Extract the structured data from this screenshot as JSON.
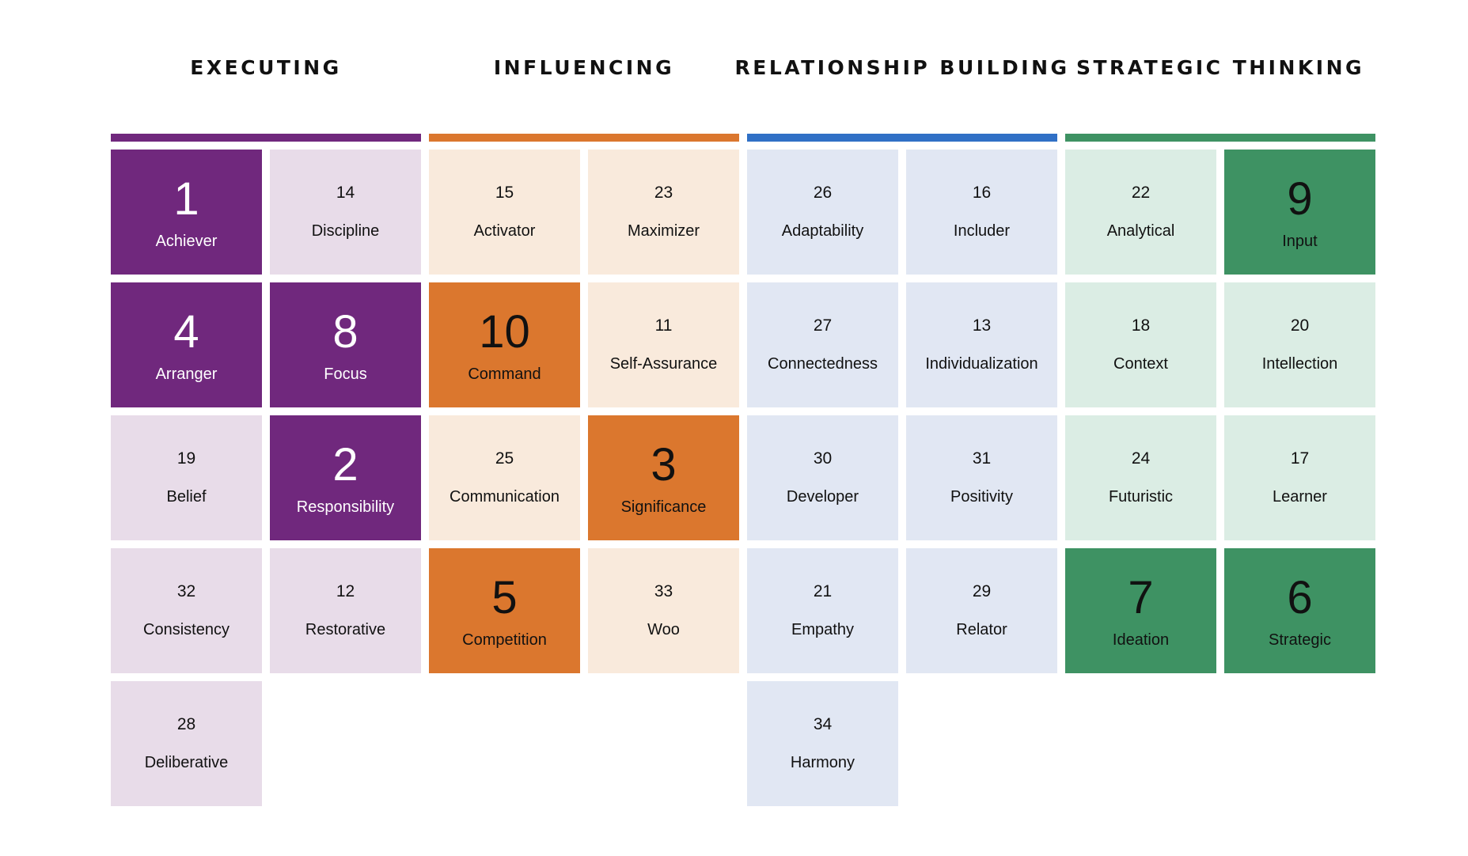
{
  "colors": {
    "executing": {
      "bar": "#70287d",
      "dark": "#70287d",
      "light": "#e8dce9",
      "dark_text": "#ffffff"
    },
    "influencing": {
      "bar": "#db772e",
      "dark": "#db772e",
      "light": "#f9eadc",
      "dark_text": "#111111"
    },
    "relationship": {
      "bar": "#3070c6",
      "dark": "#3070c6",
      "light": "#e1e7f3",
      "dark_text": "#ffffff"
    },
    "strategic": {
      "bar": "#3e9263",
      "dark": "#3e9263",
      "light": "#dbede4",
      "dark_text": "#111111"
    }
  },
  "domains": [
    {
      "key": "executing",
      "title": "EXECUTING",
      "themes": [
        {
          "rank": "1",
          "name": "Achiever",
          "top": true
        },
        {
          "rank": "14",
          "name": "Discipline",
          "top": false
        },
        {
          "rank": "4",
          "name": "Arranger",
          "top": true
        },
        {
          "rank": "8",
          "name": "Focus",
          "top": true
        },
        {
          "rank": "19",
          "name": "Belief",
          "top": false
        },
        {
          "rank": "2",
          "name": "Responsibility",
          "top": true
        },
        {
          "rank": "32",
          "name": "Consistency",
          "top": false
        },
        {
          "rank": "12",
          "name": "Restorative",
          "top": false
        },
        {
          "rank": "28",
          "name": "Deliberative",
          "top": false
        }
      ]
    },
    {
      "key": "influencing",
      "title": "INFLUENCING",
      "themes": [
        {
          "rank": "15",
          "name": "Activator",
          "top": false
        },
        {
          "rank": "23",
          "name": "Maximizer",
          "top": false
        },
        {
          "rank": "10",
          "name": "Command",
          "top": true
        },
        {
          "rank": "11",
          "name": "Self-Assurance",
          "top": false
        },
        {
          "rank": "25",
          "name": "Communication",
          "top": false
        },
        {
          "rank": "3",
          "name": "Significance",
          "top": true
        },
        {
          "rank": "5",
          "name": "Competition",
          "top": true
        },
        {
          "rank": "33",
          "name": "Woo",
          "top": false
        }
      ]
    },
    {
      "key": "relationship",
      "title": "RELATIONSHIP BUILDING",
      "themes": [
        {
          "rank": "26",
          "name": "Adaptability",
          "top": false
        },
        {
          "rank": "16",
          "name": "Includer",
          "top": false
        },
        {
          "rank": "27",
          "name": "Connectedness",
          "top": false
        },
        {
          "rank": "13",
          "name": "Individualization",
          "top": false
        },
        {
          "rank": "30",
          "name": "Developer",
          "top": false
        },
        {
          "rank": "31",
          "name": "Positivity",
          "top": false
        },
        {
          "rank": "21",
          "name": "Empathy",
          "top": false
        },
        {
          "rank": "29",
          "name": "Relator",
          "top": false
        },
        {
          "rank": "34",
          "name": "Harmony",
          "top": false
        }
      ]
    },
    {
      "key": "strategic",
      "title": "STRATEGIC THINKING",
      "themes": [
        {
          "rank": "22",
          "name": "Analytical",
          "top": false
        },
        {
          "rank": "9",
          "name": "Input",
          "top": true
        },
        {
          "rank": "18",
          "name": "Context",
          "top": false
        },
        {
          "rank": "20",
          "name": "Intellection",
          "top": false
        },
        {
          "rank": "24",
          "name": "Futuristic",
          "top": false
        },
        {
          "rank": "17",
          "name": "Learner",
          "top": false
        },
        {
          "rank": "7",
          "name": "Ideation",
          "top": true
        },
        {
          "rank": "6",
          "name": "Strategic",
          "top": true
        }
      ]
    }
  ]
}
